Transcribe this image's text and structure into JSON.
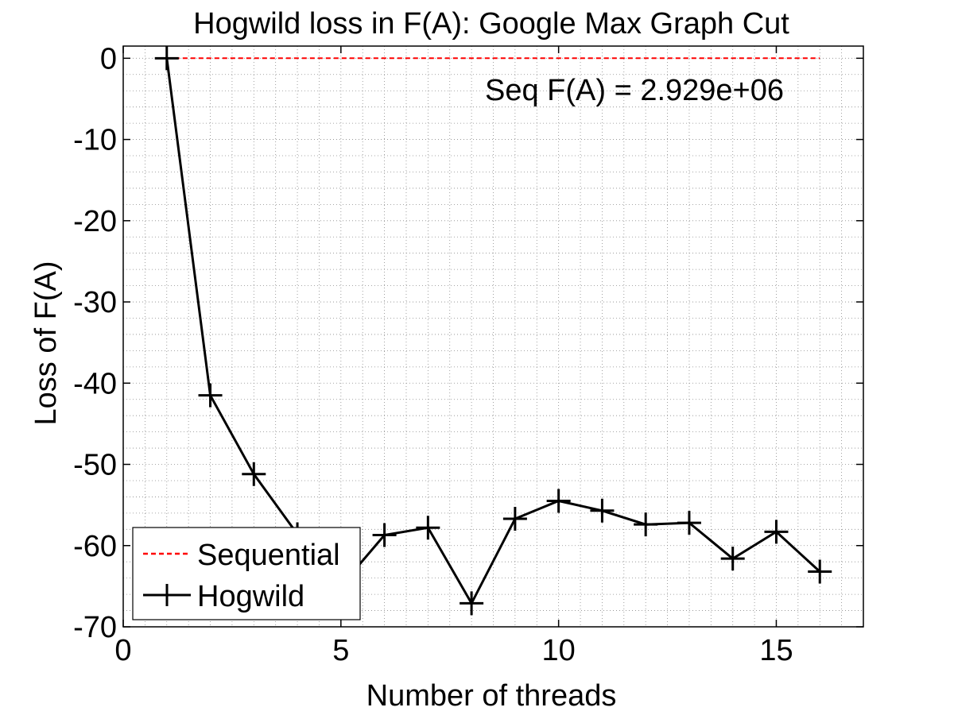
{
  "chart_data": {
    "type": "line",
    "title": "Hogwild loss in F(A): Google Max Graph Cut",
    "xlabel": "Number of threads",
    "ylabel": "Loss of F(A)",
    "xlim": [
      0,
      17
    ],
    "ylim": [
      -70,
      1.5
    ],
    "xticks": [
      0,
      5,
      10,
      15
    ],
    "yticks": [
      0,
      -10,
      -20,
      -30,
      -40,
      -50,
      -60,
      -70
    ],
    "grid": true,
    "minor_grid": true,
    "annotation": "Seq F(A) = 2.929e+06",
    "legend_position": "bottom-left",
    "series": [
      {
        "name": "Sequential",
        "style": "dashed",
        "color": "#ff0000",
        "x": [
          1,
          16
        ],
        "y": [
          0,
          0
        ]
      },
      {
        "name": "Hogwild",
        "style": "solid-plus-markers",
        "color": "#000000",
        "x": [
          1,
          2,
          3,
          4,
          5,
          6,
          7,
          8,
          9,
          10,
          11,
          12,
          13,
          14,
          15,
          16
        ],
        "y": [
          0,
          -41.5,
          -51.2,
          -58.6,
          -65.0,
          -58.7,
          -57.8,
          -67.1,
          -56.7,
          -54.5,
          -55.7,
          -57.4,
          -57.2,
          -61.6,
          -58.3,
          -63.2
        ]
      }
    ]
  }
}
